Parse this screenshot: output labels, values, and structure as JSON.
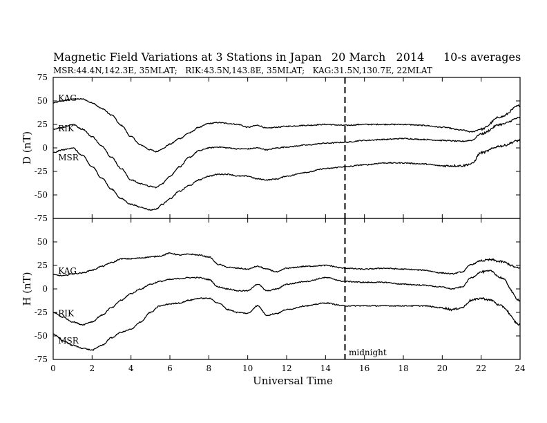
{
  "title": "Magnetic Field Variations at 3 Stations in Japan",
  "date": "20 March   2014",
  "averaging": "10-s averages",
  "subtitle": "MSR:44.4N,142.3E, 35MLAT;   RIK:43.5N,143.8E, 35MLAT;   KAG:31.5N,130.7E, 22MLAT",
  "midnight_label": "midnight",
  "colors": {
    "line": "#000000",
    "background": "#ffffff"
  },
  "chart_data": [
    {
      "type": "line",
      "ylabel": "D (nT)",
      "ylim": [
        -75,
        75
      ],
      "yticks": [
        75,
        50,
        25,
        0,
        -25,
        -50,
        -75
      ],
      "xlim": [
        0,
        24
      ],
      "midnight_ut": 15,
      "series": [
        {
          "name": "KAG",
          "x": [
            0,
            0.5,
            1,
            1.5,
            2,
            2.5,
            3,
            3.5,
            4,
            4.5,
            5,
            5.3,
            5.6,
            6,
            6.5,
            7,
            7.5,
            8,
            8.5,
            9,
            9.5,
            10,
            10.5,
            11,
            11.5,
            12,
            13,
            14,
            15,
            16,
            17,
            18,
            19,
            20,
            21,
            21.5,
            22,
            23,
            24
          ],
          "y": [
            48,
            50,
            52,
            52,
            48,
            42,
            35,
            24,
            12,
            3,
            -2,
            -4,
            -1,
            4,
            10,
            16,
            22,
            26,
            27,
            26,
            25,
            22,
            24,
            21,
            22,
            23,
            24,
            25,
            24,
            25,
            25,
            25,
            24,
            22,
            19,
            17,
            20,
            33,
            45
          ]
        },
        {
          "name": "RIK",
          "x": [
            0,
            0.5,
            1,
            1.5,
            2,
            2.5,
            3,
            3.5,
            4,
            4.5,
            5,
            5.3,
            5.6,
            6,
            6.5,
            7,
            7.5,
            8,
            8.5,
            9,
            9.5,
            10,
            10.5,
            11,
            11.5,
            12,
            13,
            14,
            15,
            16,
            17,
            18,
            19,
            20,
            21,
            21.5,
            22,
            23,
            24
          ],
          "y": [
            20,
            22,
            25,
            20,
            12,
            2,
            -10,
            -22,
            -34,
            -38,
            -41,
            -42,
            -38,
            -30,
            -20,
            -10,
            -3,
            0,
            1,
            0,
            -1,
            -1,
            0,
            -2,
            0,
            1,
            3,
            5,
            6,
            8,
            9,
            10,
            9,
            8,
            7,
            8,
            15,
            25,
            32
          ]
        },
        {
          "name": "MSR",
          "x": [
            0,
            0.5,
            1,
            1.5,
            2,
            2.5,
            3,
            3.5,
            4,
            4.5,
            5,
            5.3,
            5.6,
            6,
            6.5,
            7,
            7.5,
            8,
            8.5,
            9,
            9.5,
            10,
            10.5,
            11,
            11.5,
            12,
            13,
            14,
            15,
            16,
            17,
            18,
            19,
            20,
            21,
            21.5,
            22,
            23,
            24
          ],
          "y": [
            -5,
            -2,
            0,
            -8,
            -20,
            -32,
            -44,
            -54,
            -60,
            -63,
            -66,
            -65,
            -60,
            -54,
            -46,
            -40,
            -34,
            -30,
            -28,
            -28,
            -30,
            -30,
            -33,
            -34,
            -33,
            -30,
            -26,
            -22,
            -20,
            -18,
            -16,
            -16,
            -17,
            -19,
            -19,
            -17,
            -5,
            2,
            8
          ]
        }
      ],
      "series_labels": [
        "KAG",
        "RIK",
        "MSR"
      ]
    },
    {
      "type": "line",
      "ylabel": "H (nT)",
      "ylim": [
        -75,
        75
      ],
      "yticks": [
        75,
        50,
        25,
        0,
        -25,
        -50,
        -75
      ],
      "xlim": [
        0,
        24
      ],
      "xticks": [
        0,
        2,
        4,
        6,
        8,
        10,
        12,
        14,
        16,
        18,
        20,
        22,
        24
      ],
      "xlabel": "Universal Time",
      "midnight_ut": 15,
      "series": [
        {
          "name": "KAG",
          "x": [
            0,
            0.5,
            1,
            1.5,
            2,
            2.5,
            3,
            3.5,
            4,
            4.5,
            5,
            5.5,
            6,
            6.5,
            7,
            7.5,
            8,
            8.5,
            9,
            9.5,
            10,
            10.5,
            11,
            11.5,
            12,
            13,
            14,
            15,
            16,
            17,
            18,
            19,
            20,
            20.5,
            21,
            21.5,
            22,
            22.5,
            23,
            24
          ],
          "y": [
            15,
            14,
            16,
            17,
            20,
            24,
            28,
            32,
            32,
            33,
            34,
            35,
            38,
            36,
            37,
            36,
            34,
            26,
            23,
            22,
            21,
            24,
            21,
            18,
            22,
            24,
            25,
            22,
            21,
            22,
            21,
            20,
            17,
            16,
            18,
            26,
            30,
            31,
            29,
            22
          ]
        },
        {
          "name": "RIK",
          "x": [
            0,
            0.5,
            1,
            1.5,
            2,
            2.5,
            3,
            3.5,
            4,
            4.5,
            5,
            5.5,
            6,
            6.5,
            7,
            7.5,
            8,
            8.5,
            9,
            9.5,
            10,
            10.5,
            11,
            11.5,
            12,
            13,
            14,
            15,
            16,
            17,
            18,
            19,
            20,
            20.5,
            21,
            21.5,
            22,
            22.5,
            23,
            24
          ],
          "y": [
            -25,
            -30,
            -35,
            -38,
            -35,
            -28,
            -20,
            -12,
            -5,
            0,
            5,
            8,
            10,
            11,
            12,
            12,
            10,
            2,
            0,
            -2,
            -2,
            5,
            -2,
            0,
            5,
            8,
            12,
            8,
            7,
            7,
            5,
            4,
            2,
            0,
            2,
            12,
            18,
            19,
            12,
            -12
          ]
        },
        {
          "name": "MSR",
          "x": [
            0,
            0.5,
            1,
            1.5,
            2,
            2.5,
            3,
            3.5,
            4,
            4.5,
            5,
            5.5,
            6,
            6.5,
            7,
            7.5,
            8,
            8.5,
            9,
            9.5,
            10,
            10.5,
            11,
            11.5,
            12,
            13,
            14,
            15,
            16,
            17,
            18,
            19,
            20,
            20.5,
            21,
            21.5,
            22,
            22.5,
            23,
            24
          ],
          "y": [
            -48,
            -55,
            -60,
            -63,
            -65,
            -60,
            -52,
            -46,
            -43,
            -35,
            -25,
            -18,
            -16,
            -15,
            -12,
            -10,
            -10,
            -15,
            -22,
            -25,
            -26,
            -18,
            -28,
            -26,
            -22,
            -18,
            -15,
            -18,
            -18,
            -18,
            -18,
            -18,
            -20,
            -22,
            -20,
            -12,
            -10,
            -12,
            -18,
            -38
          ]
        }
      ],
      "series_labels": [
        "KAG",
        "RIK",
        "MSR"
      ]
    }
  ]
}
